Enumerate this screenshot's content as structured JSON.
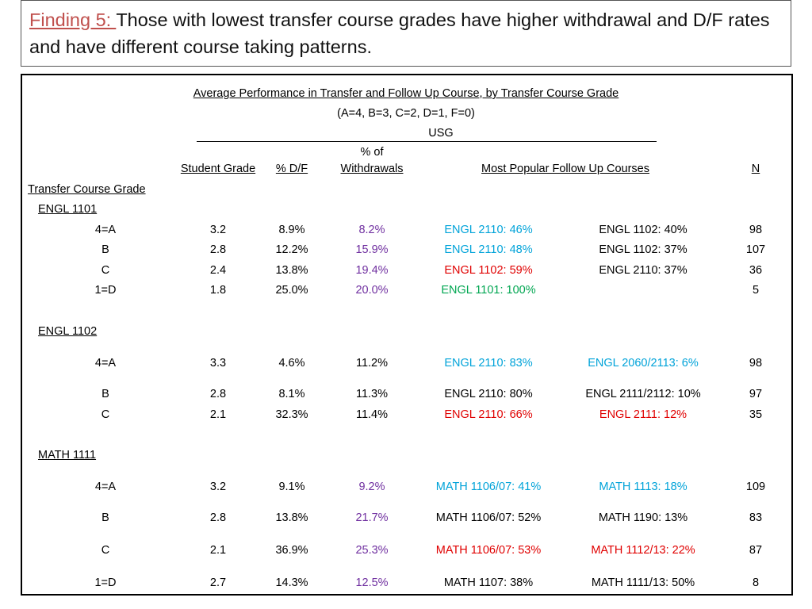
{
  "title": {
    "lead": "Finding 5: ",
    "text": "Those with lowest transfer course grades have higher withdrawal  and D/F rates and have different course taking patterns."
  },
  "table": {
    "caption": "Average Performance in Transfer and Follow Up Course, by Transfer Course Grade",
    "scale_note": "(A=4, B=3, C=2, D=1, F=0)",
    "group_label": "USG",
    "headers": {
      "student_grade": "Student Grade",
      "df": "% D/F",
      "withdrawals_top": "% of",
      "withdrawals_bottom": "Withdrawals",
      "popular": "Most Popular Follow Up Courses",
      "n": "N"
    },
    "row_header": "Transfer Course Grade",
    "sections": [
      {
        "name": "ENGL 1101",
        "rows": [
          {
            "grade": "4=A",
            "student_grade": "3.2",
            "df": "8.9%",
            "withdrawal": "8.2%",
            "course1": "ENGL 2110: 46%",
            "course2": "ENGL 1102: 40%",
            "n": "98"
          },
          {
            "grade": "B",
            "student_grade": "2.8",
            "df": "12.2%",
            "withdrawal": "15.9%",
            "course1": "ENGL 2110: 48%",
            "course2": "ENGL 1102: 37%",
            "n": "107"
          },
          {
            "grade": "C",
            "student_grade": "2.4",
            "df": "13.8%",
            "withdrawal": "19.4%",
            "course1": "ENGL 1102: 59%",
            "course2": "ENGL 2110: 37%",
            "n": "36"
          },
          {
            "grade": "1=D",
            "student_grade": "1.8",
            "df": "25.0%",
            "withdrawal": "20.0%",
            "course1": "ENGL 1101: 100%",
            "course2": "",
            "n": "5"
          }
        ]
      },
      {
        "name": "ENGL 1102",
        "rows": [
          {
            "grade": "4=A",
            "student_grade": "3.3",
            "df": "4.6%",
            "withdrawal": "11.2%",
            "course1": "ENGL 2110: 83%",
            "course2": "ENGL 2060/2113: 6%",
            "n": "98"
          },
          {
            "grade": "B",
            "student_grade": "2.8",
            "df": "8.1%",
            "withdrawal": "11.3%",
            "course1": "ENGL 2110: 80%",
            "course2": "ENGL 2111/2112: 10%",
            "n": "97"
          },
          {
            "grade": "C",
            "student_grade": "2.1",
            "df": "32.3%",
            "withdrawal": "11.4%",
            "course1": "ENGL 2110: 66%",
            "course2": "ENGL 2111: 12%",
            "n": "35"
          }
        ]
      },
      {
        "name": "MATH 1111",
        "rows": [
          {
            "grade": "4=A",
            "student_grade": "3.2",
            "df": "9.1%",
            "withdrawal": "9.2%",
            "course1": "MATH 1106/07: 41%",
            "course2": "MATH 1113: 18%",
            "n": "109"
          },
          {
            "grade": "B",
            "student_grade": "2.8",
            "df": "13.8%",
            "withdrawal": "21.7%",
            "course1": "MATH 1106/07: 52%",
            "course2": "MATH 1190: 13%",
            "n": "83"
          },
          {
            "grade": "C",
            "student_grade": "2.1",
            "df": "36.9%",
            "withdrawal": "25.3%",
            "course1": "MATH 1106/07: 53%",
            "course2": "MATH 1112/13: 22%",
            "n": "87"
          },
          {
            "grade": "1=D",
            "student_grade": "2.7",
            "df": "14.3%",
            "withdrawal": "12.5%",
            "course1": "MATH 1107: 38%",
            "course2": "MATH 1111/13: 50%",
            "n": "8"
          }
        ]
      }
    ]
  },
  "colors": {
    "title_lead": "#c0504d",
    "purple": "#7030a0",
    "blue": "#00a3d9",
    "red": "#e00000",
    "green": "#00a651"
  }
}
